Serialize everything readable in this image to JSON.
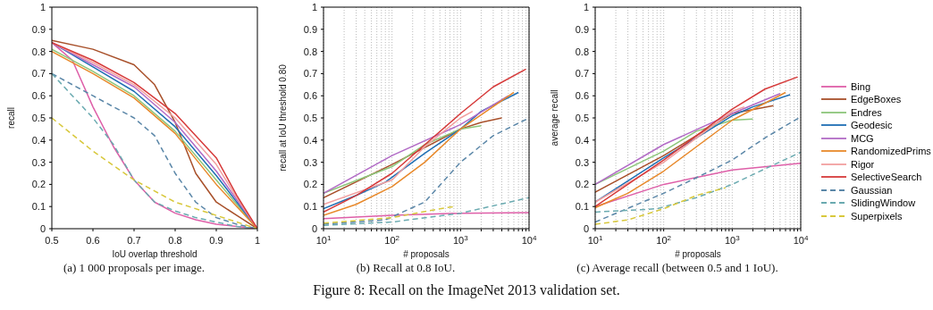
{
  "chart_data": [
    {
      "type": "line",
      "xlabel": "IoU overlap threshold",
      "ylabel": "recall",
      "xlim": [
        0.5,
        1
      ],
      "ylim": [
        0,
        1
      ],
      "xticks": [
        0.5,
        0.6,
        0.7,
        0.8,
        0.9,
        1
      ],
      "yticks": [
        0,
        0.1,
        0.2,
        0.3,
        0.4,
        0.5,
        0.6,
        0.7,
        0.8,
        0.9,
        1
      ],
      "grid": false,
      "legend": false,
      "annotations": [
        "(a) 1 000 proposals per image.",
        "Figure 8: Recall on the ImageNet 2013 validation set."
      ],
      "series": [
        {
          "color": "#de5fa8",
          "x": [
            0.5,
            0.55,
            0.6,
            0.65,
            0.7,
            0.75,
            0.8,
            0.85,
            0.9,
            0.95,
            1
          ],
          "values": [
            0.84,
            0.76,
            0.55,
            0.37,
            0.22,
            0.12,
            0.07,
            0.04,
            0.02,
            0.01,
            0
          ]
        },
        {
          "color": "#a8502a",
          "x": [
            0.5,
            0.6,
            0.7,
            0.75,
            0.8,
            0.85,
            0.9,
            0.95,
            1
          ],
          "values": [
            0.85,
            0.81,
            0.74,
            0.65,
            0.48,
            0.25,
            0.12,
            0.06,
            0
          ]
        },
        {
          "color": "#8cc67a",
          "x": [
            0.5,
            0.6,
            0.7,
            0.8,
            0.9,
            0.95,
            1
          ],
          "values": [
            0.81,
            0.71,
            0.6,
            0.44,
            0.22,
            0.11,
            0
          ]
        },
        {
          "color": "#1f6fb4",
          "x": [
            0.5,
            0.6,
            0.7,
            0.8,
            0.9,
            0.95,
            1
          ],
          "values": [
            0.84,
            0.73,
            0.62,
            0.46,
            0.24,
            0.12,
            0
          ]
        },
        {
          "color": "#b26bc6",
          "x": [
            0.5,
            0.6,
            0.7,
            0.8,
            0.9,
            0.95,
            1
          ],
          "values": [
            0.84,
            0.74,
            0.64,
            0.48,
            0.26,
            0.13,
            0
          ]
        },
        {
          "color": "#e8892b",
          "x": [
            0.5,
            0.6,
            0.7,
            0.8,
            0.9,
            0.95,
            1
          ],
          "values": [
            0.8,
            0.7,
            0.59,
            0.43,
            0.2,
            0.1,
            0
          ]
        },
        {
          "color": "#f2a0a0",
          "x": [
            0.5,
            0.6,
            0.7,
            0.8,
            0.9,
            0.95,
            1
          ],
          "values": [
            0.84,
            0.75,
            0.65,
            0.5,
            0.29,
            0.14,
            0
          ]
        },
        {
          "color": "#d63a3a",
          "x": [
            0.5,
            0.6,
            0.7,
            0.8,
            0.9,
            0.95,
            1
          ],
          "values": [
            0.84,
            0.76,
            0.66,
            0.52,
            0.32,
            0.15,
            0
          ]
        },
        {
          "color": "#5b87a8",
          "line_style": "dashed",
          "x": [
            0.5,
            0.6,
            0.7,
            0.75,
            0.8,
            0.85,
            0.9,
            0.95,
            1
          ],
          "values": [
            0.7,
            0.6,
            0.5,
            0.42,
            0.25,
            0.12,
            0.05,
            0.02,
            0
          ]
        },
        {
          "color": "#6aaab0",
          "line_style": "dashed",
          "x": [
            0.5,
            0.55,
            0.6,
            0.65,
            0.7,
            0.75,
            0.8,
            0.85,
            0.9,
            0.95,
            1
          ],
          "values": [
            0.7,
            0.6,
            0.5,
            0.38,
            0.22,
            0.12,
            0.08,
            0.05,
            0.03,
            0.01,
            0
          ]
        },
        {
          "color": "#d8c83c",
          "line_style": "dashed",
          "x": [
            0.5,
            0.6,
            0.7,
            0.8,
            0.9,
            0.95,
            1
          ],
          "values": [
            0.5,
            0.35,
            0.22,
            0.12,
            0.06,
            0.03,
            0
          ]
        }
      ]
    },
    {
      "type": "line",
      "log": "x",
      "xlabel": "# proposals",
      "ylabel": "recall at IoU threshold 0.80",
      "xlim": [
        10,
        10000
      ],
      "ylim": [
        0,
        1
      ],
      "xticks": [
        {
          "value": 10,
          "label": "10$^{1}$"
        },
        {
          "value": 20,
          "label": null
        },
        {
          "value": 30,
          "label": null
        },
        {
          "value": 40,
          "label": null
        },
        {
          "value": 50,
          "label": null
        },
        {
          "value": 60,
          "label": null
        },
        {
          "value": 70,
          "label": null
        },
        {
          "value": 80,
          "label": null
        },
        {
          "value": 90,
          "label": null
        },
        {
          "value": 100,
          "label": "10$^{2}$"
        },
        {
          "value": 200,
          "label": null
        },
        {
          "value": 300,
          "label": null
        },
        {
          "value": 400,
          "label": null
        },
        {
          "value": 500,
          "label": null
        },
        {
          "value": 600,
          "label": null
        },
        {
          "value": 700,
          "label": null
        },
        {
          "value": 800,
          "label": null
        },
        {
          "value": 900,
          "label": null
        },
        {
          "value": 1000,
          "label": "10$^{3}$"
        },
        {
          "value": 2000,
          "label": null
        },
        {
          "value": 3000,
          "label": null
        },
        {
          "value": 4000,
          "label": null
        },
        {
          "value": 5000,
          "label": null
        },
        {
          "value": 6000,
          "label": null
        },
        {
          "value": 7000,
          "label": null
        },
        {
          "value": 8000,
          "label": null
        },
        {
          "value": 9000,
          "label": null
        },
        {
          "value": 10000,
          "label": "10$^{4}$"
        }
      ],
      "yticks": [
        0,
        0.1,
        0.2,
        0.3,
        0.4,
        0.5,
        0.6,
        0.7,
        0.8,
        0.9,
        1
      ],
      "grid": "x",
      "legend": false,
      "annotations": [
        "(b) Recall at 0.8 IoU."
      ],
      "series": [
        {
          "color": "#de5fa8",
          "x": [
            10,
            100,
            1000,
            10000
          ],
          "values": [
            0.045,
            0.06,
            0.07,
            0.073
          ]
        },
        {
          "color": "#a8502a",
          "x": [
            10,
            100,
            1000,
            2000,
            4000
          ],
          "values": [
            0.14,
            0.29,
            0.45,
            0.48,
            0.5
          ]
        },
        {
          "color": "#8cc67a",
          "x": [
            10,
            100,
            300,
            1000,
            2000
          ],
          "values": [
            0.16,
            0.28,
            0.38,
            0.45,
            0.465
          ]
        },
        {
          "color": "#1f6fb4",
          "x": [
            10,
            30,
            80,
            300,
            1000,
            2000,
            7000
          ],
          "values": [
            0.09,
            0.15,
            0.21,
            0.34,
            0.45,
            0.53,
            0.615
          ]
        },
        {
          "color": "#b26bc6",
          "x": [
            10,
            100,
            1000,
            5000
          ],
          "values": [
            0.16,
            0.33,
            0.47,
            0.6
          ]
        },
        {
          "color": "#e8892b",
          "x": [
            10,
            30,
            100,
            300,
            1000,
            6000
          ],
          "values": [
            0.06,
            0.11,
            0.19,
            0.3,
            0.45,
            0.615
          ]
        },
        {
          "color": "#f2a0a0",
          "x": [
            10,
            100,
            300,
            1000,
            1500
          ],
          "values": [
            0.11,
            0.22,
            0.37,
            0.5,
            0.53
          ]
        },
        {
          "color": "#d63a3a",
          "x": [
            10,
            30,
            100,
            1000,
            3000,
            9000
          ],
          "values": [
            0.075,
            0.15,
            0.25,
            0.52,
            0.64,
            0.72
          ]
        },
        {
          "color": "#5b87a8",
          "line_style": "dashed",
          "x": [
            10,
            80,
            300,
            1000,
            3000,
            10000
          ],
          "values": [
            0.02,
            0.04,
            0.12,
            0.3,
            0.42,
            0.5
          ]
        },
        {
          "color": "#6aaab0",
          "line_style": "dashed",
          "x": [
            10,
            100,
            1000,
            10000
          ],
          "values": [
            0.015,
            0.03,
            0.07,
            0.14
          ]
        },
        {
          "color": "#d8c83c",
          "line_style": "dashed",
          "x": [
            10,
            100,
            500,
            800
          ],
          "values": [
            0.025,
            0.05,
            0.09,
            0.1
          ]
        }
      ]
    },
    {
      "type": "line",
      "log": "x",
      "xlabel": "# proposals",
      "ylabel": "average recall",
      "xlim": [
        10,
        10000
      ],
      "ylim": [
        0,
        1
      ],
      "xticks": [
        {
          "value": 10,
          "label": "10$^{1}$"
        },
        {
          "value": 20,
          "label": null
        },
        {
          "value": 30,
          "label": null
        },
        {
          "value": 40,
          "label": null
        },
        {
          "value": 50,
          "label": null
        },
        {
          "value": 60,
          "label": null
        },
        {
          "value": 70,
          "label": null
        },
        {
          "value": 80,
          "label": null
        },
        {
          "value": 90,
          "label": null
        },
        {
          "value": 100,
          "label": "10$^{2}$"
        },
        {
          "value": 200,
          "label": null
        },
        {
          "value": 300,
          "label": null
        },
        {
          "value": 400,
          "label": null
        },
        {
          "value": 500,
          "label": null
        },
        {
          "value": 600,
          "label": null
        },
        {
          "value": 700,
          "label": null
        },
        {
          "value": 800,
          "label": null
        },
        {
          "value": 900,
          "label": null
        },
        {
          "value": 1000,
          "label": "10$^{3}$"
        },
        {
          "value": 2000,
          "label": null
        },
        {
          "value": 3000,
          "label": null
        },
        {
          "value": 4000,
          "label": null
        },
        {
          "value": 5000,
          "label": null
        },
        {
          "value": 6000,
          "label": null
        },
        {
          "value": 7000,
          "label": null
        },
        {
          "value": 8000,
          "label": null
        },
        {
          "value": 9000,
          "label": null
        },
        {
          "value": 10000,
          "label": "10$^{4}$"
        }
      ],
      "yticks": [
        0,
        0.1,
        0.2,
        0.3,
        0.4,
        0.5,
        0.6,
        0.7,
        0.8,
        0.9,
        1
      ],
      "grid": "x",
      "legend": "right",
      "annotations": [
        "(c) Average recall (between 0.5 and 1 IoU)."
      ],
      "series": [
        {
          "name": "Bing",
          "color": "#de5fa8",
          "x": [
            10,
            100,
            1000,
            10000
          ],
          "values": [
            0.1,
            0.2,
            0.265,
            0.295
          ]
        },
        {
          "name": "EdgeBoxes",
          "color": "#a8502a",
          "x": [
            10,
            100,
            1000,
            4000
          ],
          "values": [
            0.165,
            0.33,
            0.52,
            0.555
          ]
        },
        {
          "name": "Endres",
          "color": "#8cc67a",
          "x": [
            10,
            100,
            300,
            1000,
            2000
          ],
          "values": [
            0.2,
            0.35,
            0.44,
            0.49,
            0.495
          ]
        },
        {
          "name": "Geodesic",
          "color": "#1f6fb4",
          "x": [
            10,
            100,
            1000,
            2000,
            7000
          ],
          "values": [
            0.12,
            0.32,
            0.51,
            0.55,
            0.605
          ]
        },
        {
          "name": "MCG",
          "color": "#b26bc6",
          "x": [
            10,
            100,
            1000,
            5000
          ],
          "values": [
            0.2,
            0.38,
            0.52,
            0.61
          ]
        },
        {
          "name": "RandomizedPrims",
          "color": "#e8892b",
          "x": [
            10,
            30,
            100,
            1000,
            6000
          ],
          "values": [
            0.095,
            0.16,
            0.26,
            0.49,
            0.615
          ]
        },
        {
          "name": "Rigor",
          "color": "#f2a0a0",
          "x": [
            10,
            100,
            1000,
            1500
          ],
          "values": [
            0.12,
            0.3,
            0.53,
            0.55
          ]
        },
        {
          "name": "SelectiveSearch",
          "color": "#d63a3a",
          "x": [
            10,
            100,
            1000,
            3000,
            9000
          ],
          "values": [
            0.1,
            0.31,
            0.54,
            0.63,
            0.685
          ]
        },
        {
          "name": "Gaussian",
          "color": "#5b87a8",
          "line_style": "dashed",
          "x": [
            10,
            100,
            300,
            1000,
            3000,
            10000
          ],
          "values": [
            0.03,
            0.16,
            0.23,
            0.31,
            0.41,
            0.505
          ]
        },
        {
          "name": "SlidingWindow",
          "color": "#6aaab0",
          "line_style": "dashed",
          "x": [
            10,
            80,
            300,
            1000,
            3000,
            10000
          ],
          "values": [
            0.075,
            0.09,
            0.14,
            0.2,
            0.27,
            0.345
          ]
        },
        {
          "name": "Superpixels",
          "color": "#d8c83c",
          "line_style": "dashed",
          "x": [
            10,
            30,
            100,
            300,
            800
          ],
          "values": [
            0.02,
            0.04,
            0.09,
            0.15,
            0.185
          ]
        }
      ]
    }
  ]
}
